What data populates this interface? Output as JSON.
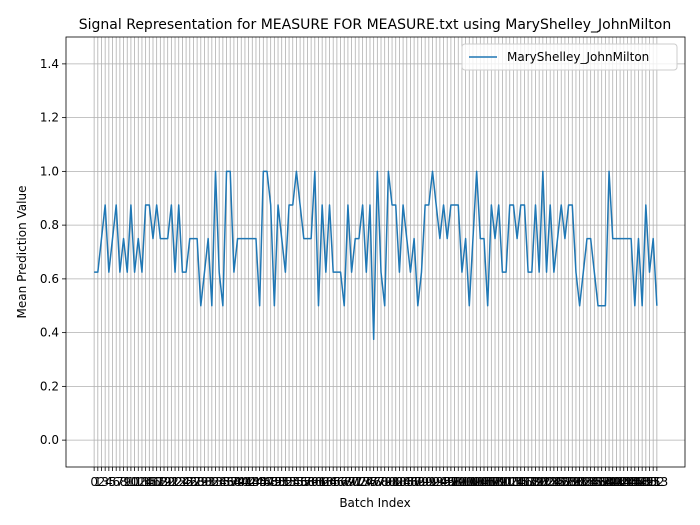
{
  "chart_data": {
    "type": "line",
    "title": "Signal Representation for MEASURE FOR MEASURE.txt using MaryShelley_JohnMilton",
    "xlabel": "Batch Index",
    "ylabel": "Mean Prediction Value",
    "x": [
      0,
      1,
      2,
      3,
      4,
      5,
      6,
      7,
      8,
      9,
      10,
      11,
      12,
      13,
      14,
      15,
      16,
      17,
      18,
      19,
      20,
      21,
      22,
      23,
      24,
      25,
      26,
      27,
      28,
      29,
      30,
      31,
      32,
      33,
      34,
      35,
      36,
      37,
      38,
      39,
      40,
      41,
      42,
      43,
      44,
      45,
      46,
      47,
      48,
      49,
      50,
      51,
      52,
      53,
      54,
      55,
      56,
      57,
      58,
      59,
      60,
      61,
      62,
      63,
      64,
      65,
      66,
      67,
      68,
      69,
      70,
      71,
      72,
      73,
      74,
      75,
      76,
      77,
      78,
      79,
      80,
      81,
      82,
      83,
      84,
      85,
      86,
      87,
      88,
      89,
      90,
      91,
      92,
      93,
      94,
      95,
      96,
      97,
      98,
      99,
      100,
      101,
      102,
      103,
      104,
      105,
      106,
      107,
      108,
      109,
      110,
      111,
      112,
      113,
      114,
      115,
      116,
      117,
      118,
      119,
      120,
      121,
      122,
      123,
      124,
      125,
      126,
      127,
      128,
      129,
      130,
      131,
      132,
      133,
      134,
      135,
      136,
      137,
      138,
      139,
      140,
      141,
      142,
      143,
      144,
      145,
      146,
      147,
      148,
      149,
      150,
      151,
      152,
      153
    ],
    "series": [
      {
        "name": "MaryShelley_JohnMilton",
        "color": "#1f77b4",
        "values": [
          0.625,
          0.625,
          0.75,
          0.875,
          0.625,
          0.75,
          0.875,
          0.625,
          0.75,
          0.625,
          0.875,
          0.625,
          0.75,
          0.625,
          0.875,
          0.875,
          0.75,
          0.875,
          0.75,
          0.75,
          0.75,
          0.875,
          0.625,
          0.875,
          0.625,
          0.625,
          0.75,
          0.75,
          0.75,
          0.5,
          0.625,
          0.75,
          0.5,
          1.0,
          0.625,
          0.5,
          1.0,
          1.0,
          0.625,
          0.75,
          0.75,
          0.75,
          0.75,
          0.75,
          0.75,
          0.5,
          1.0,
          1.0,
          0.875,
          0.5,
          0.875,
          0.75,
          0.625,
          0.875,
          0.875,
          1.0,
          0.875,
          0.75,
          0.75,
          0.75,
          1.0,
          0.5,
          0.875,
          0.625,
          0.875,
          0.625,
          0.625,
          0.625,
          0.5,
          0.875,
          0.625,
          0.75,
          0.75,
          0.875,
          0.625,
          0.875,
          0.375,
          1.0,
          0.625,
          0.5,
          1.0,
          0.875,
          0.875,
          0.625,
          0.875,
          0.75,
          0.625,
          0.75,
          0.5,
          0.625,
          0.875,
          0.875,
          1.0,
          0.875,
          0.75,
          0.875,
          0.75,
          0.875,
          0.875,
          0.875,
          0.625,
          0.75,
          0.5,
          0.75,
          1.0,
          0.75,
          0.75,
          0.5,
          0.875,
          0.75,
          0.875,
          0.625,
          0.625,
          0.875,
          0.875,
          0.75,
          0.875,
          0.875,
          0.625,
          0.625,
          0.875,
          0.625,
          1.0,
          0.625,
          0.875,
          0.625,
          0.75,
          0.875,
          0.75,
          0.875,
          0.875,
          0.625,
          0.5,
          0.625,
          0.75,
          0.75,
          0.625,
          0.5,
          0.5,
          0.5,
          1.0,
          0.75,
          0.75,
          0.75,
          0.75,
          0.75,
          0.75,
          0.5,
          0.75,
          0.5,
          0.875,
          0.625,
          0.75,
          0.5
        ]
      }
    ],
    "xlim": [
      -7.65,
      160.65
    ],
    "ylim": [
      -0.1,
      1.5
    ],
    "xticks": [
      0,
      1,
      2,
      3,
      4,
      5,
      6,
      7,
      8,
      9,
      10,
      11,
      12,
      13,
      14,
      15,
      16,
      17,
      18,
      19,
      20,
      21,
      22,
      23,
      24,
      25,
      26,
      27,
      28,
      29,
      30,
      31,
      32,
      33,
      34,
      35,
      36,
      37,
      38,
      39,
      40,
      41,
      42,
      43,
      44,
      45,
      46,
      47,
      48,
      49,
      50,
      51,
      52,
      53,
      54,
      55,
      56,
      57,
      58,
      59,
      60,
      61,
      62,
      63,
      64,
      65,
      66,
      67,
      68,
      69,
      70,
      71,
      72,
      73,
      74,
      75,
      76,
      77,
      78,
      79,
      80,
      81,
      82,
      83,
      84,
      85,
      86,
      87,
      88,
      89,
      90,
      91,
      92,
      93,
      94,
      95,
      96,
      97,
      98,
      99,
      100,
      101,
      102,
      103,
      104,
      105,
      106,
      107,
      108,
      109,
      110,
      111,
      112,
      113,
      114,
      115,
      116,
      117,
      118,
      119,
      120,
      121,
      122,
      123,
      124,
      125,
      126,
      127,
      128,
      129,
      130,
      131,
      132,
      133,
      134,
      135,
      136,
      137,
      138,
      139,
      140,
      141,
      142,
      143,
      144,
      145,
      146,
      147,
      148,
      149,
      150,
      151,
      152,
      153
    ],
    "yticks": [
      {
        "value": 0,
        "label": "0.0"
      },
      0.2,
      0.4,
      0.6,
      0.8,
      {
        "value": 1,
        "label": "1.0"
      },
      1.2,
      1.4
    ],
    "grid": true,
    "legend": "upper right"
  }
}
